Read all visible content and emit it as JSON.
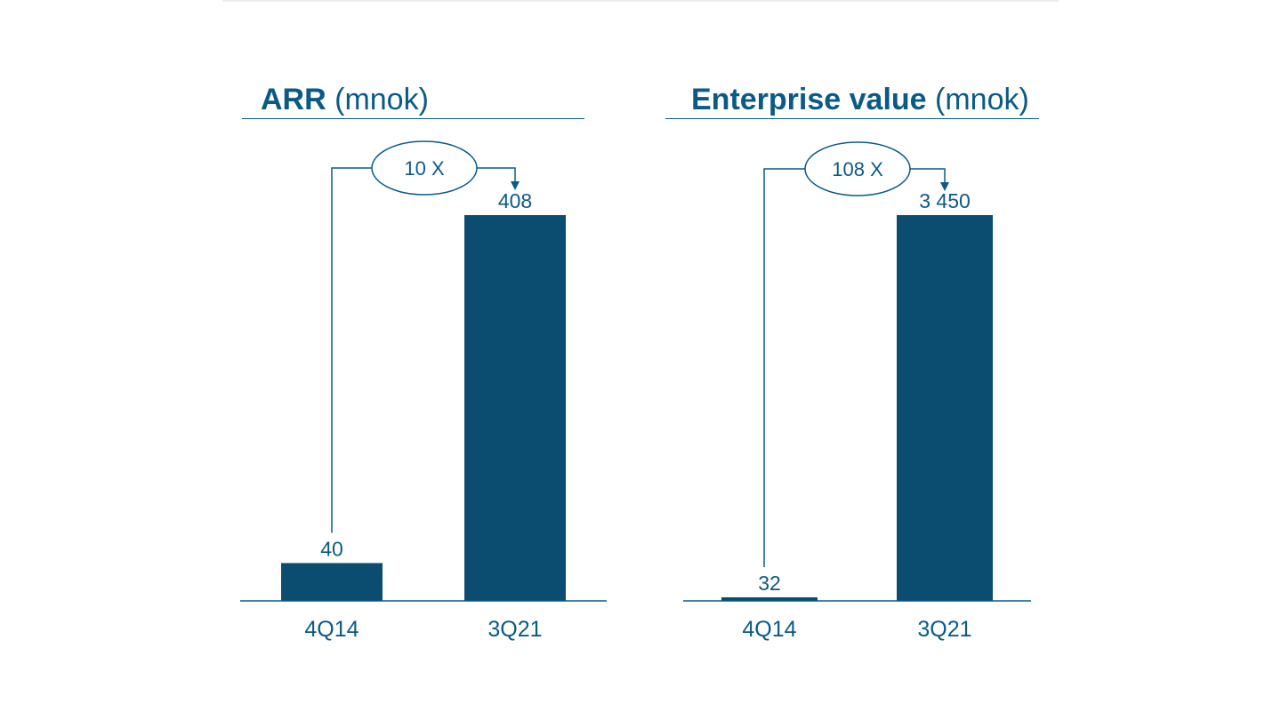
{
  "style": {
    "bar_color": "#0a4d70",
    "text_color": "#0b5a86",
    "line_color": "#0b5a86"
  },
  "chart_data": [
    {
      "type": "bar",
      "title_bold": "ARR",
      "title_unit": "(mnok)",
      "categories": [
        "4Q14",
        "3Q21"
      ],
      "values": [
        40,
        408
      ],
      "value_labels": [
        "40",
        "408"
      ],
      "multiplier_label": "10 X",
      "ylim": [
        0,
        408
      ]
    },
    {
      "type": "bar",
      "title_bold": "Enterprise value",
      "title_unit": "(mnok)",
      "categories": [
        "4Q14",
        "3Q21"
      ],
      "values": [
        32,
        3450
      ],
      "value_labels": [
        "32",
        "3 450"
      ],
      "multiplier_label": "108 X",
      "ylim": [
        0,
        3450
      ]
    }
  ]
}
